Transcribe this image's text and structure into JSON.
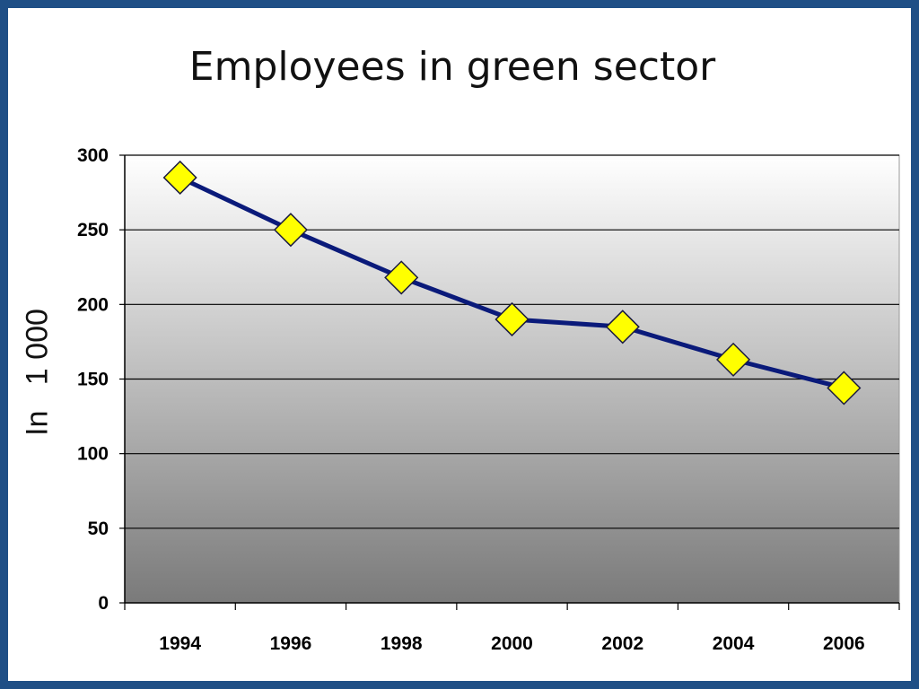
{
  "chart_data": {
    "type": "line",
    "title": "Employees in green sector",
    "xlabel": "",
    "ylabel": "In   1 000",
    "categories": [
      "1994",
      "1996",
      "1998",
      "2000",
      "2002",
      "2004",
      "2006"
    ],
    "series": [
      {
        "values": [
          285,
          250,
          218,
          190,
          185,
          163,
          144
        ]
      }
    ],
    "ylim": [
      0,
      300
    ],
    "yticks": [
      "0",
      "50",
      "100",
      "150",
      "200",
      "250",
      "300"
    ],
    "grid": true,
    "legend": "none",
    "colors": {
      "line": "#0a1a7a",
      "marker_fill": "#ffff00",
      "marker_stroke": "#1a1a40",
      "plot_gradient_top": "#ffffff",
      "plot_gradient_bottom": "#7a7a7a",
      "border": "#1f4f86"
    }
  }
}
